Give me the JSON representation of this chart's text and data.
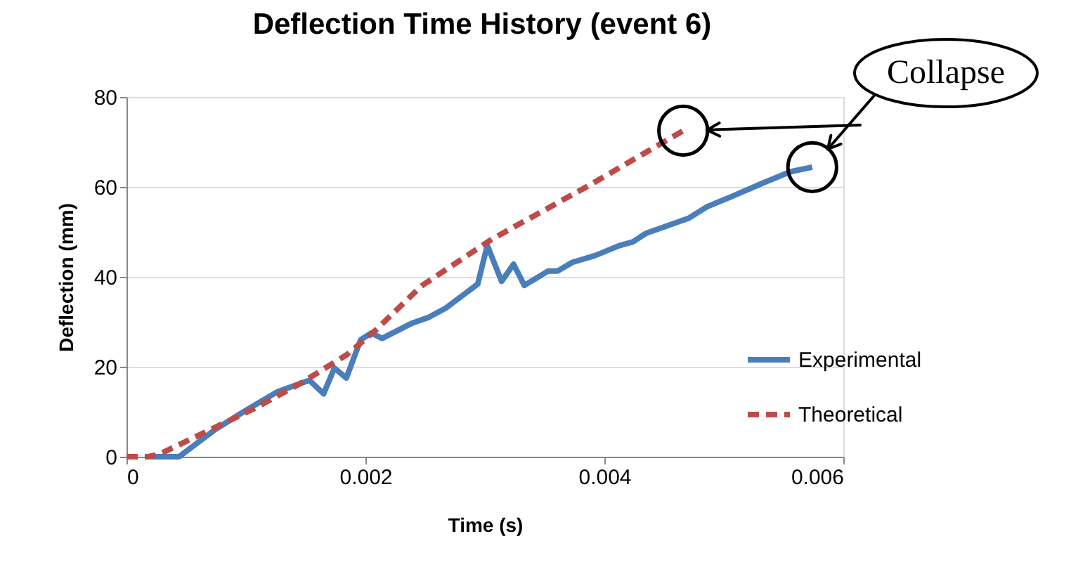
{
  "chart_data": {
    "type": "line",
    "title": "Deflection Time History (event 6)",
    "xlabel": "Time (s)",
    "ylabel": "Deflection (mm)",
    "xlim": [
      0,
      0.006
    ],
    "xticks": [
      0,
      0.002,
      0.004,
      0.006
    ],
    "ylim": [
      0,
      80
    ],
    "yticks": [
      0,
      20,
      40,
      60,
      80
    ],
    "grid": "y",
    "legend": "right",
    "series": [
      {
        "name": "Experimental",
        "color": "#4a7ebb",
        "line_style": "solid",
        "x": [
          0.0002,
          0.00044,
          0.00074,
          0.00098,
          0.00126,
          0.00153,
          0.00165,
          0.00174,
          0.00184,
          0.00196,
          0.00205,
          0.00214,
          0.00239,
          0.00253,
          0.00267,
          0.00282,
          0.00294,
          0.00302,
          0.00314,
          0.00324,
          0.00333,
          0.00353,
          0.00361,
          0.00373,
          0.00392,
          0.00412,
          0.00424,
          0.00435,
          0.00471,
          0.00486,
          0.00506,
          0.00533,
          0.00556,
          0.00574
        ],
        "values": [
          0,
          0,
          6,
          10,
          14.4,
          17,
          14,
          19.7,
          17.5,
          26,
          27.5,
          26.3,
          29.7,
          31,
          33,
          36,
          38.4,
          47,
          39,
          42.8,
          38.1,
          41.3,
          41.3,
          43.2,
          44.7,
          46.9,
          47.8,
          49.7,
          53.1,
          55.6,
          57.8,
          60.9,
          63.4,
          64.4
        ]
      },
      {
        "name": "Theoretical",
        "color": "#be4b48",
        "line_style": "dashed",
        "x": [
          0,
          0.00018,
          0.00027,
          0.00067,
          0.00106,
          0.00145,
          0.00185,
          0.00208,
          0.00247,
          0.00306,
          0.00385,
          0.00466
        ],
        "values": [
          0,
          0,
          0.5,
          5.6,
          10.6,
          16.2,
          22.8,
          28,
          38,
          48.4,
          60,
          72.5
        ]
      }
    ],
    "annotations": [
      {
        "text": "Collapse",
        "x": 0.00587,
        "y": 68.4
      }
    ]
  }
}
